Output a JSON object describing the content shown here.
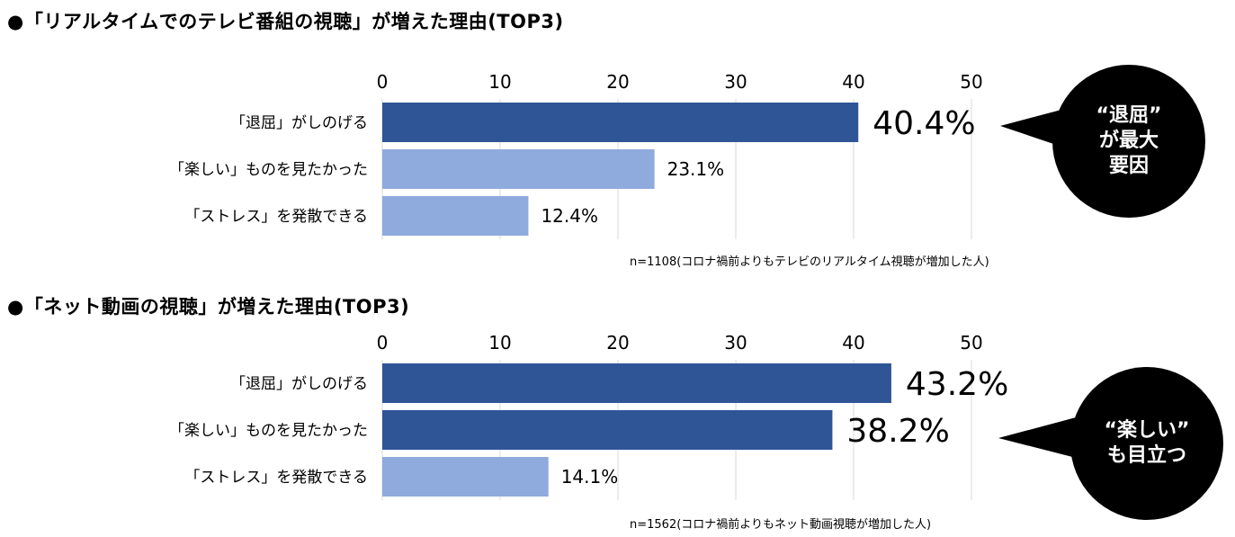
{
  "colors": {
    "primary": "#2F5597",
    "secondary": "#8FAADC",
    "grid": "#D9D9D9",
    "bubble": "#000000"
  },
  "chart_data": [
    {
      "type": "bar",
      "title": "●「リアルタイムでのテレビ番組の視聴」が増えた理由(TOP3)",
      "categories": [
        "「退屈」がしのげる",
        "「楽しい」ものを見たかった",
        "「ストレス」を発散できる"
      ],
      "values": [
        40.4,
        23.1,
        12.4
      ],
      "value_labels": [
        "40.4%",
        "23.1%",
        "12.4%"
      ],
      "highlight": [
        true,
        false,
        false
      ],
      "xlim": [
        0,
        50
      ],
      "ticks": [
        "0",
        "10",
        "20",
        "30",
        "40",
        "50"
      ],
      "note": "n=1108(コロナ禍前よりもテレビのリアルタイム視聴が増加した人)",
      "callout": "“退屈”\nが最大\n要因"
    },
    {
      "type": "bar",
      "title": "●「ネット動画の視聴」が増えた理由(TOP3)",
      "categories": [
        "「退屈」がしのげる",
        "「楽しい」ものを見たかった",
        "「ストレス」を発散できる"
      ],
      "values": [
        43.2,
        38.2,
        14.1
      ],
      "value_labels": [
        "43.2%",
        "38.2%",
        "14.1%"
      ],
      "highlight": [
        true,
        true,
        false
      ],
      "xlim": [
        0,
        50
      ],
      "ticks": [
        "0",
        "10",
        "20",
        "30",
        "40",
        "50"
      ],
      "note": "n=1562(コロナ禍前よりもネット動画視聴が増加した人)",
      "callout": "“楽しい”\nも目立つ"
    }
  ]
}
